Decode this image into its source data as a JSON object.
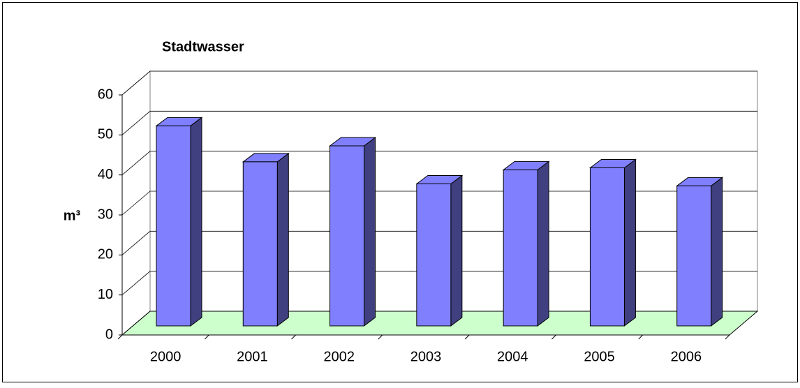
{
  "chart_data": {
    "type": "bar",
    "title": "Stadtwasser",
    "y_label": "m³",
    "categories": [
      "2000",
      "2001",
      "2002",
      "2003",
      "2004",
      "2005",
      "2006"
    ],
    "values": [
      50,
      41,
      45,
      35.5,
      39,
      39.5,
      35
    ],
    "color": "#8080ff",
    "floor_color": "#ccffcc",
    "ylim": [
      0,
      60
    ],
    "yticks": [
      0,
      10,
      20,
      30,
      40,
      50,
      60
    ],
    "grid": true
  }
}
